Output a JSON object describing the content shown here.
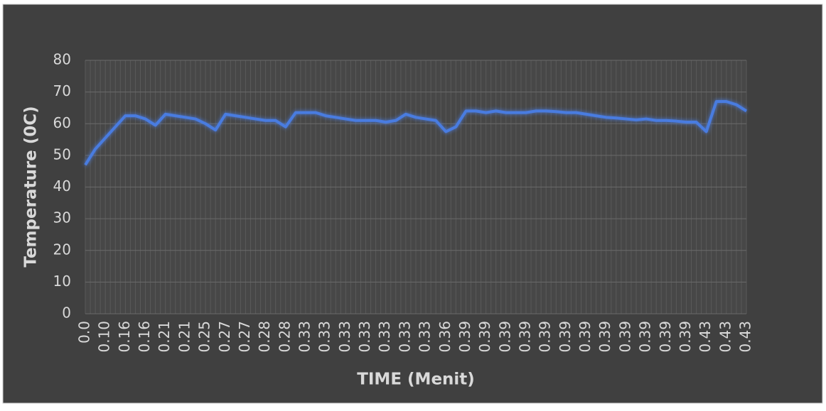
{
  "chart_data": {
    "type": "line",
    "xlabel": "TIME (Menit)",
    "ylabel": "Temperature (0C)",
    "categories": [
      "0.0",
      null,
      "0.10",
      null,
      "0.16",
      null,
      "0.16",
      null,
      "0.21",
      null,
      "0.21",
      null,
      "0.25",
      null,
      "0.27",
      null,
      "0.27",
      null,
      "0.28",
      null,
      "0.28",
      null,
      "0.33",
      null,
      "0.33",
      null,
      "0.33",
      null,
      "0.33",
      null,
      "0.33",
      null,
      "0.33",
      null,
      "0.33",
      null,
      "0.36",
      null,
      "0.39",
      null,
      "0.39",
      null,
      "0.39",
      null,
      "0.39",
      null,
      "0.39",
      null,
      "0.39",
      null,
      "0.39",
      null,
      "0.39",
      null,
      "0.39",
      null,
      "0.39",
      null,
      "0.39",
      null,
      "0.39",
      null,
      "0.43",
      null,
      "0.43",
      null,
      "0.43"
    ],
    "series": [
      {
        "name": "Temperature",
        "color": "#4a7be0",
        "values": [
          47,
          52,
          55.5,
          59,
          62.5,
          62.5,
          61.5,
          59.5,
          63,
          62.5,
          62,
          61.5,
          60,
          58,
          63,
          62.5,
          62,
          61.5,
          61,
          61,
          59,
          63.5,
          63.5,
          63.5,
          62.5,
          62,
          61.5,
          61,
          61,
          61,
          60.5,
          61,
          63,
          62,
          61.5,
          61,
          57.5,
          59,
          64,
          64,
          63.5,
          64,
          63.5,
          63.5,
          63.5,
          64,
          64,
          63.8,
          63.5,
          63.5,
          63,
          62.5,
          62,
          61.8,
          61.5,
          61.2,
          61.5,
          61,
          61,
          60.8,
          60.5,
          60.5,
          57.5,
          67,
          67,
          66,
          64
        ]
      }
    ],
    "ylim": [
      0,
      80
    ],
    "yticks": [
      0,
      10,
      20,
      30,
      40,
      50,
      60,
      70,
      80
    ],
    "grid": true
  }
}
